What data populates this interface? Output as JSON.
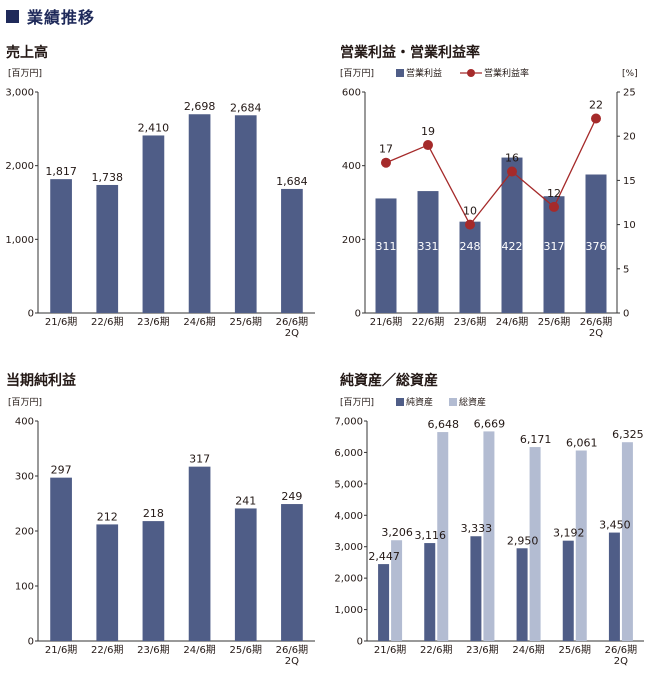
{
  "header": {
    "title": "業績推移"
  },
  "colors": {
    "navy": "#4f5d87",
    "light": "#b3bcd2",
    "line": "#a52a2a",
    "axis": "#333333"
  },
  "chart_data": [
    {
      "title": "売上高",
      "type": "bar",
      "unit": "[百万円]",
      "categories": [
        "21/6期",
        "22/6期",
        "23/6期",
        "24/6期",
        "25/6期",
        "26/6期\n2Q"
      ],
      "series": [
        {
          "values": [
            1817,
            1738,
            2410,
            2698,
            2684,
            1684
          ],
          "labels": [
            "1,817",
            "1,738",
            "2,410",
            "2,698",
            "2,684",
            "1,684"
          ]
        }
      ],
      "ylim": [
        0,
        3000
      ],
      "yticks": [
        "0",
        "1,000",
        "2,000",
        "3,000"
      ],
      "ytick_values": [
        0,
        1000,
        2000,
        3000
      ]
    },
    {
      "title": "営業利益・営業利益率",
      "type": "bar+line",
      "unit": "[百万円]",
      "unit_right": "[%]",
      "categories": [
        "21/6期",
        "22/6期",
        "23/6期",
        "24/6期",
        "25/6期",
        "26/6期\n2Q"
      ],
      "series": [
        {
          "name": "営業利益",
          "values": [
            311,
            331,
            248,
            422,
            317,
            376
          ],
          "labels": [
            "311",
            "331",
            "248",
            "422",
            "317",
            "376"
          ]
        },
        {
          "name": "営業利益率",
          "values": [
            17,
            19,
            10,
            16,
            12,
            22
          ],
          "labels": [
            "17",
            "19",
            "10",
            "16",
            "12",
            "22"
          ]
        }
      ],
      "ylim": [
        0,
        600
      ],
      "yticks": [
        "0",
        "200",
        "400",
        "600"
      ],
      "ytick_values": [
        0,
        200,
        400,
        600
      ],
      "y2lim": [
        0,
        25
      ],
      "y2ticks": [
        "0",
        "5",
        "10",
        "15",
        "20",
        "25"
      ],
      "y2tick_values": [
        0,
        5,
        10,
        15,
        20,
        25
      ]
    },
    {
      "title": "当期純利益",
      "type": "bar",
      "unit": "[百万円]",
      "categories": [
        "21/6期",
        "22/6期",
        "23/6期",
        "24/6期",
        "25/6期",
        "26/6期\n2Q"
      ],
      "series": [
        {
          "values": [
            297,
            212,
            218,
            317,
            241,
            249
          ],
          "labels": [
            "297",
            "212",
            "218",
            "317",
            "241",
            "249"
          ]
        }
      ],
      "ylim": [
        0,
        400
      ],
      "yticks": [
        "0",
        "100",
        "200",
        "300",
        "400"
      ],
      "ytick_values": [
        0,
        100,
        200,
        300,
        400
      ]
    },
    {
      "title": "純資産／総資産",
      "type": "grouped-bar",
      "unit": "[百万円]",
      "categories": [
        "21/6期",
        "22/6期",
        "23/6期",
        "24/6期",
        "25/6期",
        "26/6期\n2Q"
      ],
      "series": [
        {
          "name": "純資産",
          "values": [
            2447,
            3116,
            3333,
            2950,
            3192,
            3450
          ],
          "labels": [
            "2,447",
            "3,116",
            "3,333",
            "2,950",
            "3,192",
            "3,450"
          ]
        },
        {
          "name": "総資産",
          "values": [
            3206,
            6648,
            6669,
            6171,
            6061,
            6325
          ],
          "labels": [
            "3,206",
            "6,648",
            "6,669",
            "6,171",
            "6,061",
            "6,325"
          ]
        }
      ],
      "ylim": [
        0,
        7000
      ],
      "yticks": [
        "0",
        "1,000",
        "2,000",
        "3,000",
        "4,000",
        "5,000",
        "6,000",
        "7,000"
      ],
      "ytick_values": [
        0,
        1000,
        2000,
        3000,
        4000,
        5000,
        6000,
        7000
      ]
    }
  ]
}
